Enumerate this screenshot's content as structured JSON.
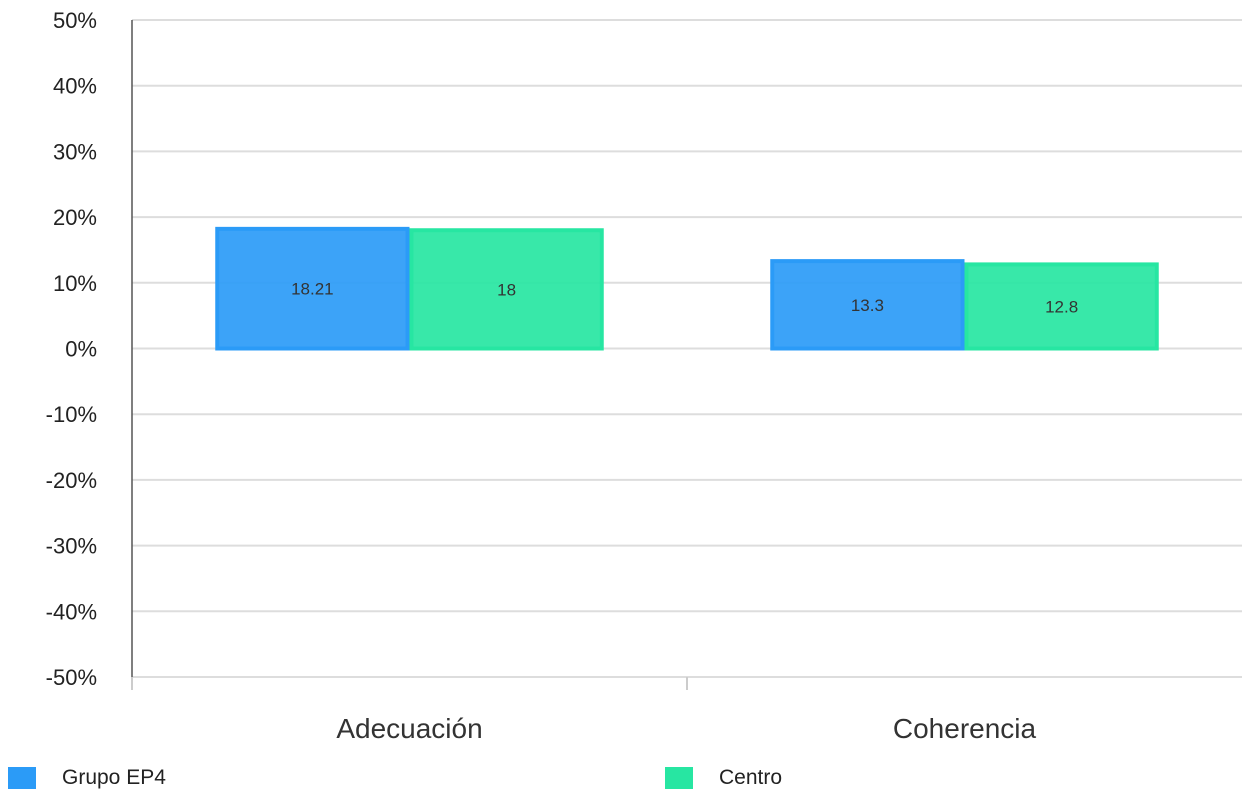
{
  "chart_data": {
    "type": "bar",
    "categories": [
      "Adecuación",
      "Coherencia"
    ],
    "series": [
      {
        "name": "Grupo EP4",
        "values": [
          18.21,
          13.3
        ],
        "color": "#2b9bf7"
      },
      {
        "name": "Centro",
        "values": [
          18,
          12.8
        ],
        "color": "#27e6a2"
      }
    ],
    "ylim": [
      -50,
      50
    ],
    "yticks": [
      50,
      40,
      30,
      20,
      10,
      0,
      -10,
      -20,
      -30,
      -40,
      -50
    ],
    "ytick_suffix": "%",
    "grid": true,
    "legend_position": "bottom",
    "data_labels": true
  }
}
